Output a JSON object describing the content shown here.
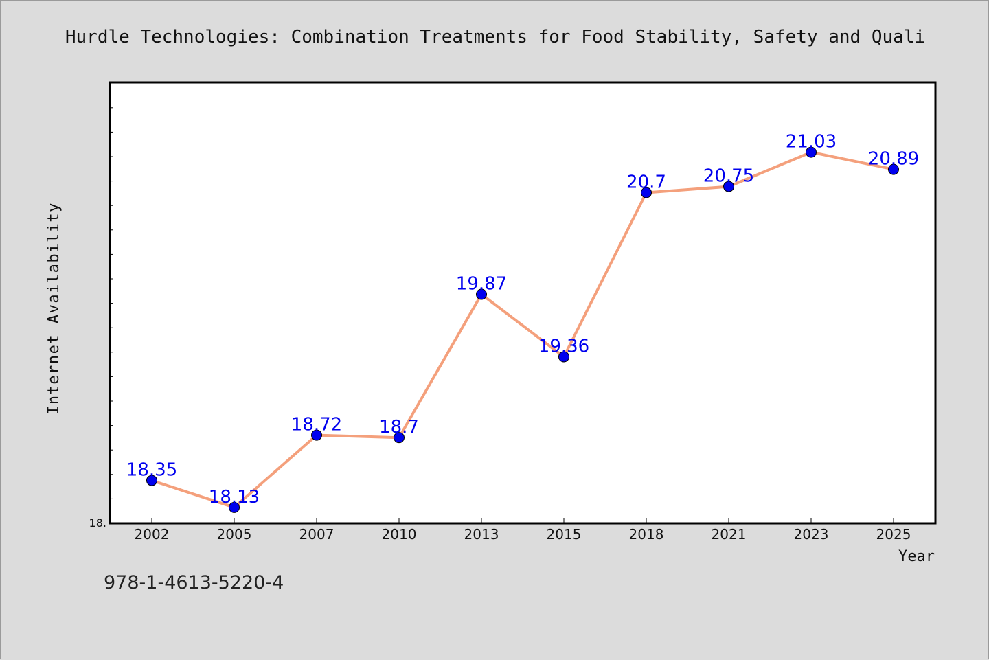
{
  "chart_data": {
    "type": "line",
    "title": "Hurdle Technologies: Combination Treatments for Food Stability, Safety and Quali",
    "xlabel": "Year",
    "ylabel": "Internet Availability",
    "categories": [
      "2002",
      "2005",
      "2007",
      "2010",
      "2013",
      "2015",
      "2018",
      "2021",
      "2023",
      "2025"
    ],
    "values": [
      18.35,
      18.13,
      18.72,
      18.7,
      19.87,
      19.36,
      20.7,
      20.75,
      21.03,
      20.89
    ],
    "data_labels": [
      "18.35",
      "18.13",
      "18.72",
      "18.7",
      "19.87",
      "19.36",
      "20.7",
      "20.75",
      "21.03",
      "20.89"
    ],
    "ylim": [
      18.0,
      21.6
    ],
    "y_tick_label": "18.",
    "grid": false,
    "line_color": "#f4a07c",
    "marker_color": "#0000ee",
    "label_color": "#0000ee"
  },
  "footer": {
    "isbn": "978-1-4613-5220-4"
  }
}
